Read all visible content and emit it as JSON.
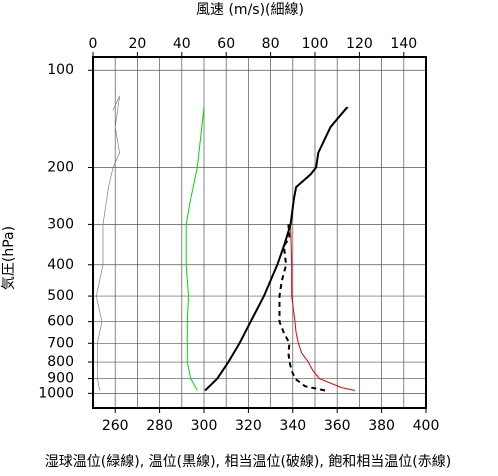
{
  "chart_data": {
    "type": "profile",
    "title": "風速 (m/s)(細線)",
    "xlabel": "湿球温位(緑線), 温位(黒線), 相当温位(破線), 飽和相当温位(赤線)",
    "ylabel": "気圧(hPa)",
    "xlim": [
      250,
      400
    ],
    "xticks": [
      260,
      280,
      300,
      320,
      340,
      360,
      380,
      400
    ],
    "x2lim": [
      0,
      150
    ],
    "x2ticks": [
      0,
      20,
      40,
      60,
      80,
      100,
      120,
      140
    ],
    "ylim": [
      91,
      1110
    ],
    "ylog": true,
    "yinverted": true,
    "yticks": [
      100,
      200,
      300,
      400,
      500,
      600,
      700,
      800,
      900,
      1000
    ],
    "grid": true,
    "series": [
      {
        "color": "#808080",
        "axis": "x2",
        "width": 0.7,
        "y": [
          133,
          120,
          150,
          180,
          200,
          230,
          300,
          400,
          500,
          600,
          700,
          800,
          900,
          980
        ],
        "values": [
          9,
          12,
          10,
          12,
          9,
          7,
          4.5,
          4.5,
          1.5,
          4,
          2,
          2,
          2,
          3
        ]
      },
      {
        "color": "#00dd00",
        "width": 1,
        "y": [
          130,
          150,
          200,
          250,
          300,
          400,
          500,
          600,
          700,
          800,
          900,
          980
        ],
        "values": [
          300,
          299,
          297,
          294,
          292,
          292,
          293,
          292.5,
          292.5,
          292.5,
          294,
          297
        ]
      },
      {
        "color": "#e00000",
        "width": 1,
        "y": [
          980,
          960,
          900,
          850,
          800,
          750,
          700,
          650,
          600,
          500,
          400,
          300,
          250,
          230,
          210,
          200,
          180,
          150,
          130
        ],
        "values": [
          368,
          362,
          352,
          349,
          347,
          344,
          342.5,
          341.5,
          341,
          339.5,
          339.5,
          339,
          340.5,
          341.5,
          348,
          350.5,
          351.5,
          357,
          365
        ]
      },
      {
        "color": "#000000",
        "width": 2,
        "dash": "5,4",
        "y": [
          980,
          950,
          900,
          850,
          800,
          750,
          700,
          650,
          600,
          500,
          450,
          400,
          350,
          330,
          300
        ],
        "values": [
          354.5,
          345.5,
          341,
          339.5,
          338.5,
          338,
          338.5,
          336,
          334,
          334,
          335,
          337,
          336,
          338.5,
          338
        ]
      },
      {
        "color": "#000000",
        "width": 2,
        "y": [
          980,
          900,
          800,
          700,
          600,
          500,
          400,
          350,
          300,
          250,
          230,
          210,
          200,
          180,
          150,
          130
        ],
        "values": [
          300.5,
          306,
          311,
          316,
          321,
          327,
          333,
          336,
          339,
          340.5,
          341.5,
          348,
          350.5,
          351.5,
          357,
          364.5
        ]
      }
    ]
  }
}
